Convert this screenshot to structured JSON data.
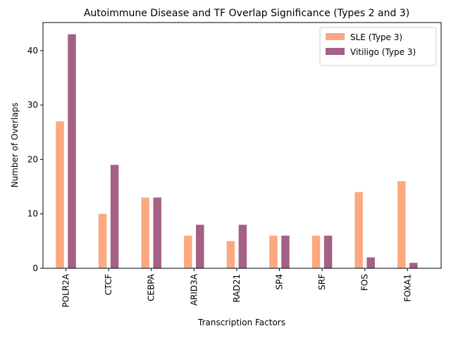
{
  "chart_data": {
    "type": "bar",
    "title": "Autoimmune Disease and TF Overlap Significance (Types 2 and 3)",
    "xlabel": "Transcription Factors",
    "ylabel": "Number of Overlaps",
    "categories": [
      "POLR2A",
      "CTCF",
      "CEBPA",
      "ARID3A",
      "RAD21",
      "SP4",
      "SRF",
      "FOS",
      "FOXA1"
    ],
    "series": [
      {
        "name": "SLE (Type 3)",
        "color": "#fca072",
        "values": [
          27,
          10,
          13,
          6,
          5,
          6,
          6,
          14,
          16
        ]
      },
      {
        "name": "Vitiligo (Type 3)",
        "color": "#9b4f78",
        "values": [
          43,
          19,
          13,
          8,
          8,
          6,
          6,
          2,
          1
        ]
      }
    ],
    "ylim": [
      0,
      45.15
    ],
    "yticks": [
      0,
      10,
      20,
      30,
      40
    ],
    "legend": "top-right",
    "grid": false
  }
}
